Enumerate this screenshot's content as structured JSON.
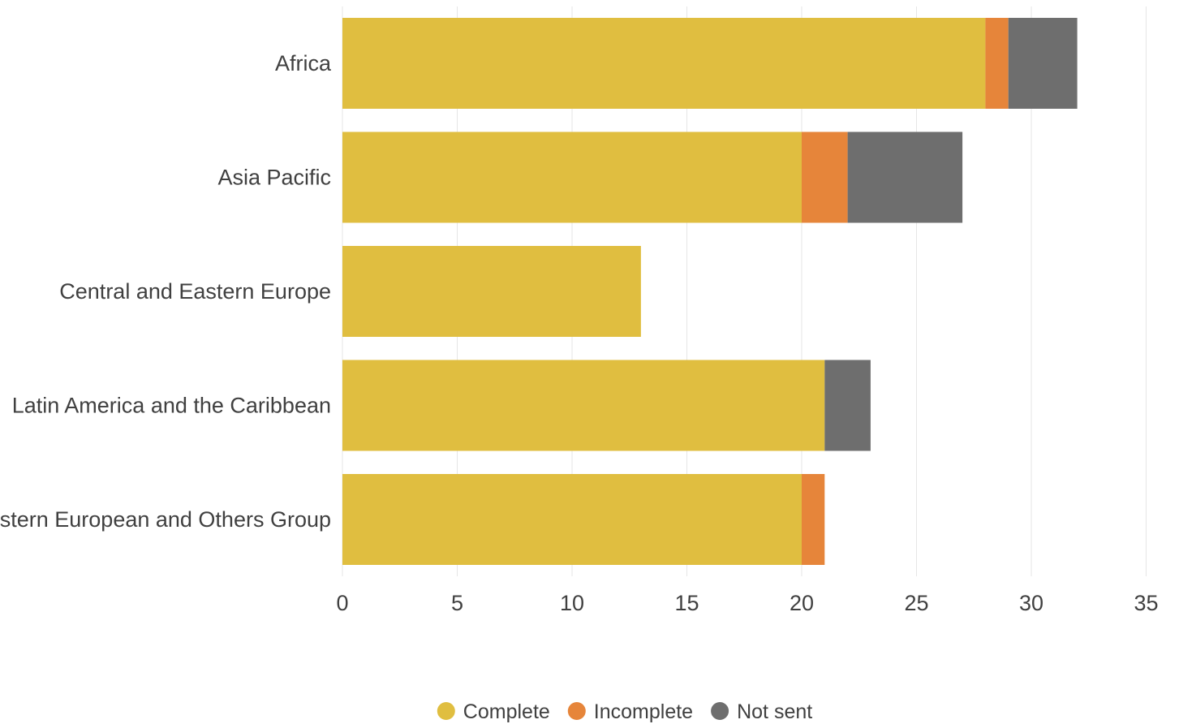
{
  "chart_data": {
    "type": "bar",
    "orientation": "horizontal",
    "stacked": true,
    "categories": [
      "Africa",
      "Asia Pacific",
      "Central and Eastern Europe",
      "Latin America and the Caribbean",
      "Western European and Others Group"
    ],
    "series": [
      {
        "name": "Complete",
        "color": "#E0BE40",
        "values": [
          28,
          20,
          13,
          21,
          20
        ]
      },
      {
        "name": "Incomplete",
        "color": "#E6853A",
        "values": [
          1,
          2,
          0,
          0,
          1
        ]
      },
      {
        "name": "Not sent",
        "color": "#6E6E6E",
        "values": [
          3,
          5,
          0,
          2,
          0
        ]
      }
    ],
    "xlim": [
      0,
      35
    ],
    "xticks": [
      "0",
      "5",
      "10",
      "15",
      "20",
      "25",
      "30",
      "35"
    ],
    "grid": true,
    "legend_position": "bottom"
  }
}
